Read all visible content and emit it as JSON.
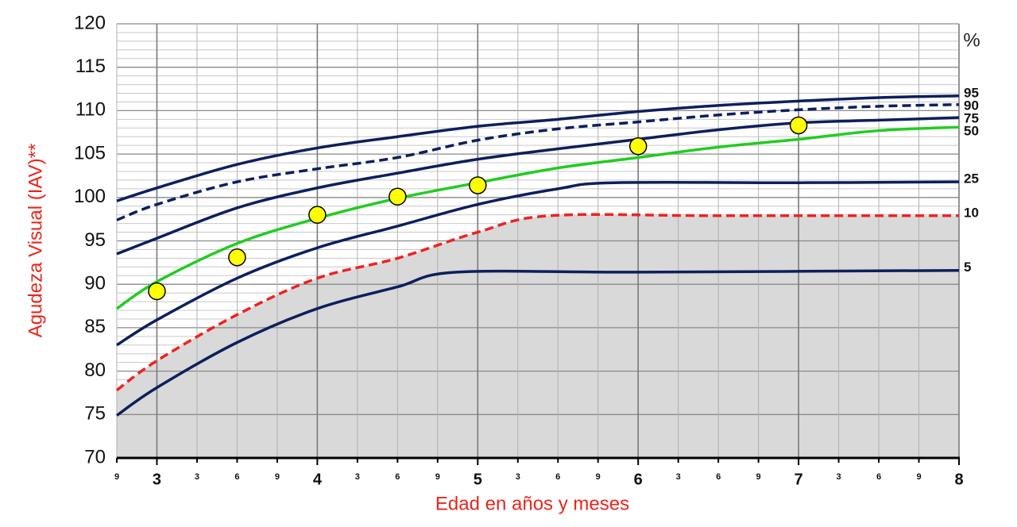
{
  "chart_data": {
    "type": "line",
    "y_label": "Agudeza Visual (IAV)**",
    "x_label": "Edad en años y meses",
    "series_header": "%",
    "xlim": [
      2.75,
      8
    ],
    "ylim": [
      70,
      120
    ],
    "yticks": [
      70,
      75,
      80,
      85,
      90,
      95,
      100,
      105,
      110,
      115,
      120
    ],
    "xticks": [
      {
        "value": 2.75,
        "label": "9"
      },
      3,
      {
        "value": 3.25,
        "label": "3"
      },
      {
        "value": 3.5,
        "label": "6"
      },
      {
        "value": 3.75,
        "label": "9"
      },
      4,
      {
        "value": 4.25,
        "label": "3"
      },
      {
        "value": 4.5,
        "label": "6"
      },
      {
        "value": 4.75,
        "label": "9"
      },
      5,
      {
        "value": 5.25,
        "label": "3"
      },
      {
        "value": 5.5,
        "label": "6"
      },
      {
        "value": 5.75,
        "label": "9"
      },
      6,
      {
        "value": 6.25,
        "label": "3"
      },
      {
        "value": 6.5,
        "label": "6"
      },
      {
        "value": 6.75,
        "label": "9"
      },
      7,
      {
        "value": 7.25,
        "label": "3"
      },
      {
        "value": 7.5,
        "label": "6"
      },
      {
        "value": 7.75,
        "label": "9"
      },
      8
    ],
    "grid": true,
    "series": [
      {
        "name": "95",
        "color": "#0d1f5c",
        "dash": false,
        "x": [
          2.75,
          3,
          3.5,
          4,
          4.5,
          5,
          5.5,
          6,
          6.5,
          7,
          7.5,
          8
        ],
        "values": [
          99.6,
          101.1,
          103.8,
          105.7,
          107.0,
          108.2,
          109.0,
          109.9,
          110.6,
          111.1,
          111.5,
          111.7
        ]
      },
      {
        "name": "90",
        "color": "#0d1f5c",
        "dash": true,
        "x": [
          2.75,
          3,
          3.5,
          4,
          4.5,
          5,
          5.5,
          6,
          6.5,
          7,
          7.5,
          8
        ],
        "values": [
          97.4,
          99.2,
          101.8,
          103.3,
          104.6,
          106.6,
          107.9,
          108.7,
          109.5,
          110.1,
          110.5,
          110.7
        ]
      },
      {
        "name": "75",
        "color": "#0d1f5c",
        "dash": false,
        "x": [
          2.75,
          3,
          3.5,
          4,
          4.5,
          5,
          5.5,
          6,
          6.5,
          7,
          7.5,
          8
        ],
        "values": [
          93.5,
          95.3,
          98.8,
          101.1,
          102.8,
          104.4,
          105.6,
          106.7,
          107.8,
          108.6,
          108.9,
          109.2
        ]
      },
      {
        "name": "50",
        "color": "#22cc22",
        "dash": false,
        "x": [
          2.75,
          3,
          3.5,
          4,
          4.5,
          5,
          5.5,
          6,
          6.5,
          7,
          7.5,
          8
        ],
        "values": [
          87.2,
          90.3,
          94.7,
          97.6,
          99.9,
          101.7,
          103.4,
          104.6,
          105.8,
          106.7,
          107.7,
          108.1
        ]
      },
      {
        "name": "25",
        "color": "#0d1f5c",
        "dash": false,
        "x": [
          2.75,
          3,
          3.5,
          4,
          4.5,
          5,
          5.5,
          5.85,
          7,
          8
        ],
        "values": [
          83.0,
          85.9,
          90.7,
          94.2,
          96.7,
          99.2,
          101.0,
          101.7,
          101.7,
          101.8
        ]
      },
      {
        "name": "10",
        "color": "#ee2222",
        "dash": true,
        "fill_below": "#d9d9d9",
        "x": [
          2.75,
          3,
          3.5,
          4,
          4.5,
          5,
          5.45,
          6.5,
          8
        ],
        "values": [
          77.8,
          81.2,
          86.5,
          90.7,
          93.0,
          96.0,
          97.9,
          97.9,
          97.9
        ]
      },
      {
        "name": "5",
        "color": "#0d1f5c",
        "dash": false,
        "x": [
          2.75,
          3,
          3.5,
          4,
          4.5,
          4.87,
          6,
          8
        ],
        "values": [
          74.9,
          78.1,
          83.3,
          87.2,
          89.7,
          91.4,
          91.4,
          91.6
        ]
      }
    ],
    "points": {
      "color": "#ffff00",
      "x": [
        3,
        3.5,
        4,
        4.5,
        5,
        6,
        7
      ],
      "values": [
        89.2,
        93.1,
        98.0,
        100.1,
        101.4,
        105.9,
        108.3
      ]
    }
  }
}
